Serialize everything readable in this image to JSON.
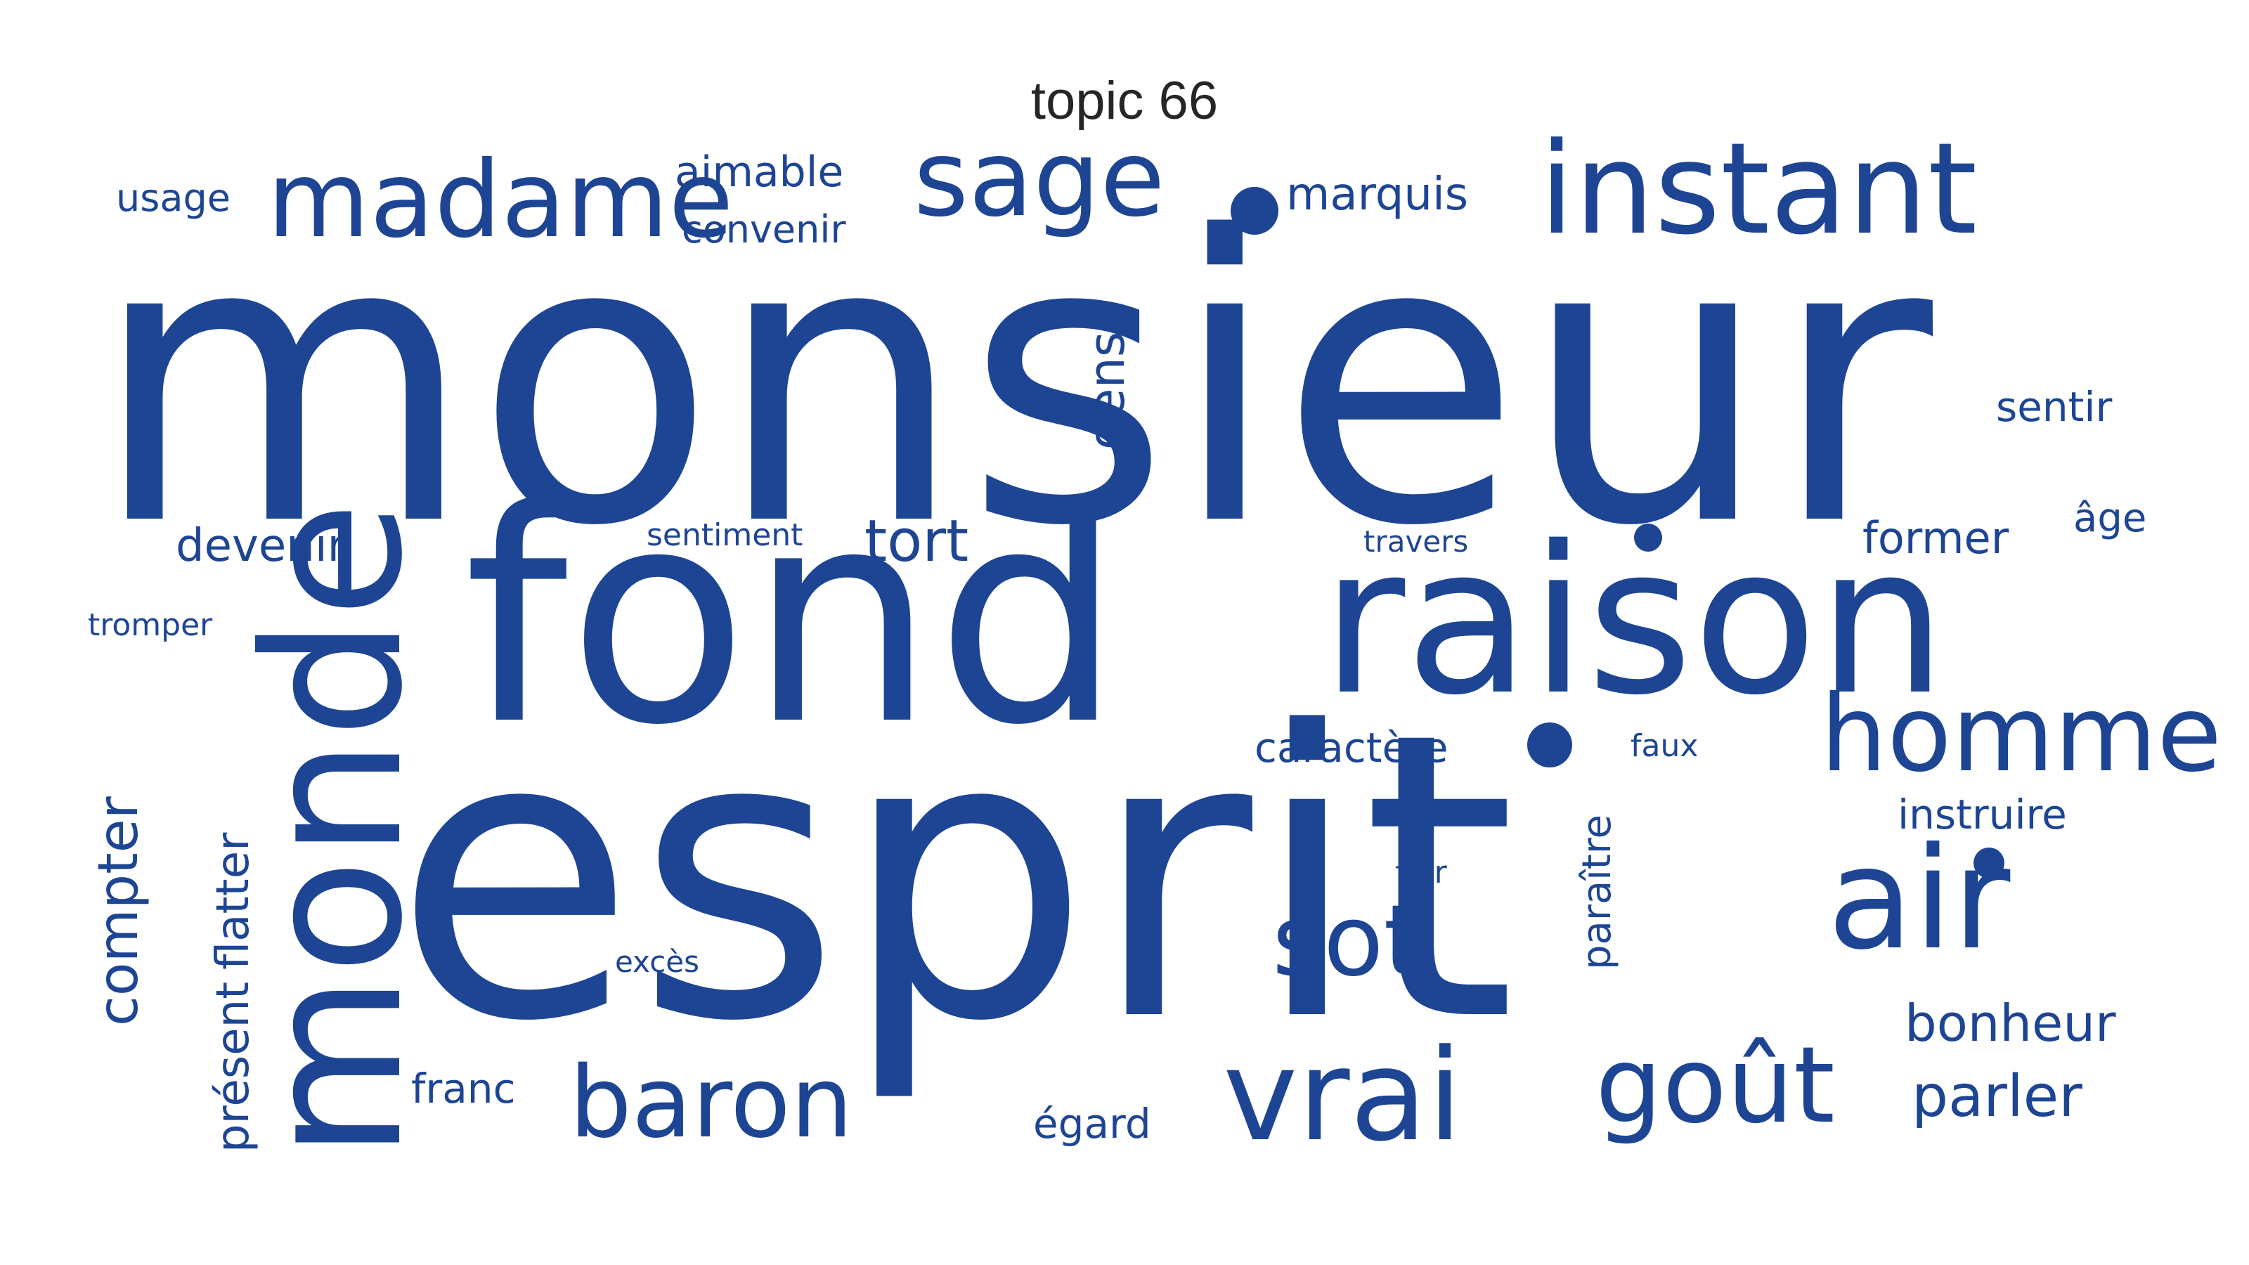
{
  "title": "topic 66",
  "color": "#1d4593",
  "words": [
    {
      "text": "monsieur",
      "weight": 1.0
    },
    {
      "text": "esprit",
      "weight": 0.98
    },
    {
      "text": "fond",
      "weight": 0.76
    },
    {
      "text": "raison",
      "weight": 0.52
    },
    {
      "text": "monde",
      "weight": 0.46
    },
    {
      "text": "air",
      "weight": 0.34
    },
    {
      "text": "instant",
      "weight": 0.31
    },
    {
      "text": "vrai",
      "weight": 0.26
    },
    {
      "text": "homme",
      "weight": 0.24
    },
    {
      "text": "madame",
      "weight": 0.24
    },
    {
      "text": "sage",
      "weight": 0.22
    },
    {
      "text": "goût",
      "weight": 0.22
    },
    {
      "text": "sot",
      "weight": 0.21
    },
    {
      "text": "baron",
      "weight": 0.21
    },
    {
      "text": "compter",
      "weight": 0.13
    },
    {
      "text": "gens",
      "weight": 0.12
    },
    {
      "text": "tort",
      "weight": 0.13
    },
    {
      "text": "parler",
      "weight": 0.12
    },
    {
      "text": "bonheur",
      "weight": 0.11
    },
    {
      "text": "flatter",
      "weight": 0.1
    },
    {
      "text": "présent",
      "weight": 0.1
    },
    {
      "text": "marquis",
      "weight": 0.09
    },
    {
      "text": "devenir",
      "weight": 0.09
    },
    {
      "text": "former",
      "weight": 0.09
    },
    {
      "text": "paraître",
      "weight": 0.09
    },
    {
      "text": "sentir",
      "weight": 0.08
    },
    {
      "text": "caractère",
      "weight": 0.08
    },
    {
      "text": "instruire",
      "weight": 0.08
    },
    {
      "text": "franc",
      "weight": 0.08
    },
    {
      "text": "égard",
      "weight": 0.08
    },
    {
      "text": "aimable",
      "weight": 0.08
    },
    {
      "text": "convenir",
      "weight": 0.08
    },
    {
      "text": "usage",
      "weight": 0.07
    },
    {
      "text": "âge",
      "weight": 0.07
    },
    {
      "text": "fuir",
      "weight": 0.06
    },
    {
      "text": "faux",
      "weight": 0.06
    },
    {
      "text": "sentiment",
      "weight": 0.06
    },
    {
      "text": "tromper",
      "weight": 0.06
    },
    {
      "text": "travers",
      "weight": 0.05
    },
    {
      "text": "excès",
      "weight": 0.05
    }
  ]
}
